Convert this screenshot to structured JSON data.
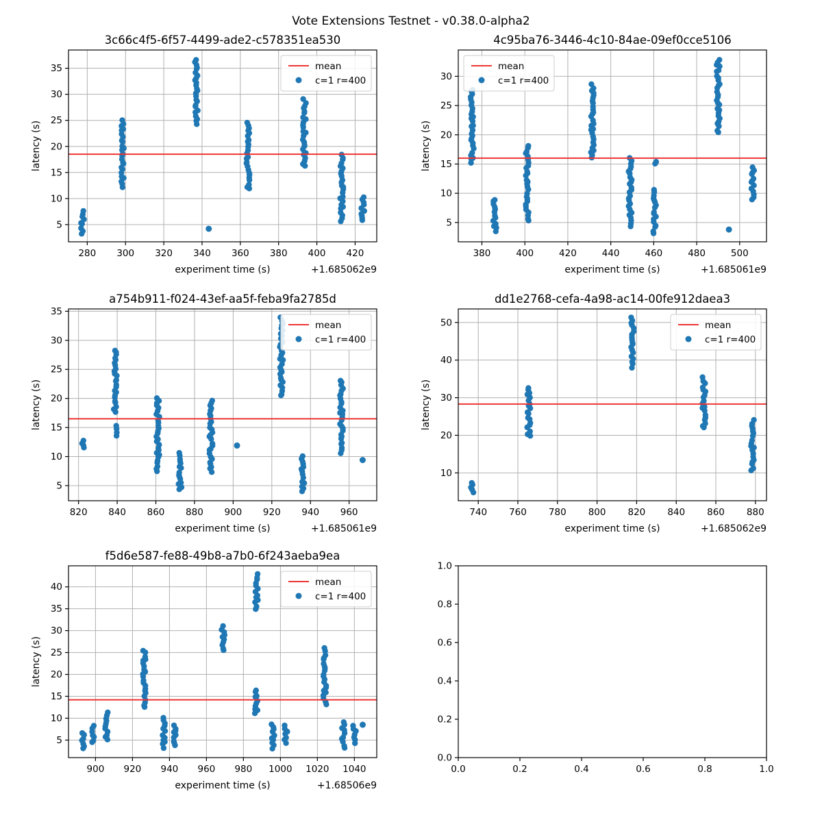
{
  "figure": {
    "title": "Vote Extensions Testnet - v0.38.0-alpha2"
  },
  "colors": {
    "scatter": "#1f77b4",
    "mean_line": "#ee3333",
    "grid": "#b0b0b0",
    "axis": "#000000",
    "legend_border": "#cccccc",
    "background": "#ffffff"
  },
  "legend": {
    "items": [
      {
        "sample": "line",
        "label": "mean"
      },
      {
        "sample": "marker",
        "label": "c=1 r=400"
      }
    ]
  },
  "cluster_format": "each cluster is [x_value, y_min, y_max] in data units; y_min==y_max means single point",
  "chart_data": [
    {
      "type": "scatter",
      "title": "3c66c4f5-6f57-4499-ade2-c578351ea530",
      "xlabel": "experiment time (s)",
      "ylabel": "latency (s)",
      "x_offset_text": "+1.685062e9",
      "xlim": [
        270.2,
        431.3
      ],
      "ylim": [
        1.7,
        38.5
      ],
      "xticks": [
        280,
        300,
        320,
        340,
        360,
        380,
        400,
        420
      ],
      "xtick_labels": [
        "280",
        "300",
        "320",
        "340",
        "360",
        "380",
        "400",
        "420"
      ],
      "yticks": [
        5,
        10,
        15,
        20,
        25,
        30,
        35
      ],
      "ytick_labels": [
        "5",
        "10",
        "15",
        "20",
        "25",
        "30",
        "35"
      ],
      "grid": true,
      "mean": 18.5,
      "legend_loc": "upper right",
      "clusters": [
        [
          277.5,
          3.4,
          7.6
        ],
        [
          298.5,
          12.3,
          25.0
        ],
        [
          337.0,
          24.4,
          36.8
        ],
        [
          343.5,
          4.2,
          4.2
        ],
        [
          364.0,
          11.8,
          24.5
        ],
        [
          393.5,
          16.2,
          28.9
        ],
        [
          413.0,
          5.8,
          18.4
        ],
        [
          424.0,
          5.7,
          10.2
        ]
      ]
    },
    {
      "type": "scatter",
      "title": "4c95ba76-3446-4c10-84ae-09ef0cce5106",
      "xlabel": "experiment time (s)",
      "ylabel": "latency (s)",
      "x_offset_text": "+1.685061e9",
      "xlim": [
        369.0,
        512.5
      ],
      "ylim": [
        1.7,
        34.5
      ],
      "xticks": [
        380,
        400,
        420,
        440,
        460,
        480,
        500
      ],
      "xtick_labels": [
        "380",
        "400",
        "420",
        "440",
        "460",
        "480",
        "500"
      ],
      "yticks": [
        5,
        10,
        15,
        20,
        25,
        30
      ],
      "ytick_labels": [
        "5",
        "10",
        "15",
        "20",
        "25",
        "30"
      ],
      "grid": true,
      "mean": 16.0,
      "legend_loc": "upper left",
      "clusters": [
        [
          375.5,
          15.2,
          27.8
        ],
        [
          386.0,
          3.5,
          9.0
        ],
        [
          401.0,
          5.3,
          18.1
        ],
        [
          431.5,
          16.0,
          28.6
        ],
        [
          449.0,
          4.5,
          16.1
        ],
        [
          460.5,
          3.2,
          10.7
        ],
        [
          460.5,
          15.1,
          15.5
        ],
        [
          490.0,
          20.4,
          33.0
        ],
        [
          495.0,
          3.8,
          3.8
        ],
        [
          506.0,
          9.0,
          14.5
        ]
      ]
    },
    {
      "type": "scatter",
      "title": "a754b911-f024-43ef-aa5f-feba9fa2785d",
      "xlabel": "experiment time (s)",
      "ylabel": "latency (s)",
      "x_offset_text": "+1.685061e9",
      "xlim": [
        814.8,
        974.3
      ],
      "ylim": [
        2.4,
        35.4
      ],
      "xticks": [
        820,
        840,
        860,
        880,
        900,
        920,
        940,
        960
      ],
      "xtick_labels": [
        "820",
        "840",
        "860",
        "880",
        "900",
        "920",
        "940",
        "960"
      ],
      "yticks": [
        5,
        10,
        15,
        20,
        25,
        30,
        35
      ],
      "ytick_labels": [
        "5",
        "10",
        "15",
        "20",
        "25",
        "30",
        "35"
      ],
      "grid": true,
      "mean": 16.5,
      "legend_loc": "upper right",
      "clusters": [
        [
          822.0,
          11.4,
          12.8
        ],
        [
          839.0,
          13.7,
          15.3
        ],
        [
          839.0,
          17.7,
          28.4
        ],
        [
          861.0,
          7.4,
          20.1
        ],
        [
          872.5,
          4.2,
          10.6
        ],
        [
          888.5,
          7.3,
          19.8
        ],
        [
          902.0,
          11.9,
          11.9
        ],
        [
          925.0,
          20.4,
          33.9
        ],
        [
          936.0,
          3.9,
          10.2
        ],
        [
          956.0,
          10.6,
          23.2
        ],
        [
          967.0,
          9.4,
          9.4
        ]
      ]
    },
    {
      "type": "scatter",
      "title": "dd1e2768-cefa-4a98-ac14-00fe912daea3",
      "xlabel": "experiment time (s)",
      "ylabel": "latency (s)",
      "x_offset_text": "+1.685062e9",
      "xlim": [
        729.9,
        885.6
      ],
      "ylim": [
        2.6,
        53.6
      ],
      "xticks": [
        740,
        760,
        780,
        800,
        820,
        840,
        860,
        880
      ],
      "xtick_labels": [
        "740",
        "760",
        "780",
        "800",
        "820",
        "840",
        "860",
        "880"
      ],
      "yticks": [
        10,
        20,
        30,
        40,
        50
      ],
      "ytick_labels": [
        "10",
        "20",
        "30",
        "40",
        "50"
      ],
      "grid": true,
      "mean": 28.3,
      "legend_loc": "upper right",
      "clusters": [
        [
          737.0,
          4.9,
          7.5
        ],
        [
          765.5,
          19.8,
          32.8
        ],
        [
          818.0,
          38.2,
          51.3
        ],
        [
          854.0,
          21.9,
          35.2
        ],
        [
          878.5,
          10.7,
          24.0
        ]
      ]
    },
    {
      "type": "scatter",
      "title": "f5d6e587-fe88-49b8-a7b0-6f243aeba9ea",
      "xlabel": "experiment time (s)",
      "ylabel": "latency (s)",
      "x_offset_text": "+1.68506e9",
      "xlim": [
        885.4,
        1052.1
      ],
      "ylim": [
        1.0,
        44.8
      ],
      "xticks": [
        900,
        920,
        940,
        960,
        980,
        1000,
        1020,
        1040
      ],
      "xtick_labels": [
        "900",
        "920",
        "940",
        "960",
        "980",
        "1000",
        "1020",
        "1040"
      ],
      "yticks": [
        5,
        10,
        15,
        20,
        25,
        30,
        35,
        40
      ],
      "ytick_labels": [
        "5",
        "10",
        "15",
        "20",
        "25",
        "30",
        "35",
        "40"
      ],
      "grid": true,
      "mean": 14.2,
      "legend_loc": "upper right",
      "clusters": [
        [
          893.0,
          3.0,
          6.6
        ],
        [
          899.0,
          4.4,
          8.1
        ],
        [
          906.0,
          5.0,
          11.2
        ],
        [
          926.5,
          12.5,
          25.5
        ],
        [
          937.0,
          3.3,
          10.0
        ],
        [
          943.0,
          3.6,
          8.4
        ],
        [
          969.0,
          25.3,
          31.0
        ],
        [
          987.0,
          35.0,
          42.8
        ],
        [
          987.0,
          11.0,
          16.5
        ],
        [
          996.0,
          3.0,
          8.8
        ],
        [
          1003.0,
          4.5,
          8.2
        ],
        [
          1024.0,
          13.2,
          25.8
        ],
        [
          1034.0,
          3.2,
          9.0
        ],
        [
          1040.0,
          4.5,
          8.3
        ],
        [
          1044.5,
          8.5,
          8.5
        ]
      ]
    },
    {
      "type": "empty",
      "title": "",
      "xlabel": "",
      "ylabel": "",
      "x_offset_text": "",
      "xlim": [
        0,
        1
      ],
      "ylim": [
        0,
        1
      ],
      "xticks": [
        0,
        0.2,
        0.4,
        0.6,
        0.8,
        1.0
      ],
      "xtick_labels": [
        "0.0",
        "0.2",
        "0.4",
        "0.6",
        "0.8",
        "1.0"
      ],
      "yticks": [
        0,
        0.2,
        0.4,
        0.6,
        0.8,
        1.0
      ],
      "ytick_labels": [
        "0.0",
        "0.2",
        "0.4",
        "0.6",
        "0.8",
        "1.0"
      ],
      "grid": false,
      "mean": null,
      "legend_loc": null,
      "clusters": []
    }
  ]
}
